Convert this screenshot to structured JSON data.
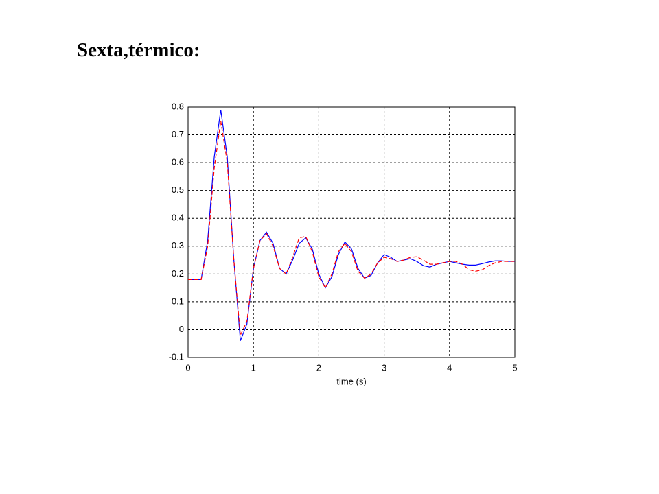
{
  "slide_title": "Sexta,térmico:",
  "chart_data": {
    "type": "line",
    "xlabel": "time (s)",
    "x": [
      0,
      0.1,
      0.2,
      0.3,
      0.4,
      0.5,
      0.6,
      0.7,
      0.8,
      0.9,
      1.0,
      1.1,
      1.2,
      1.3,
      1.4,
      1.5,
      1.6,
      1.7,
      1.8,
      1.9,
      2.0,
      2.1,
      2.2,
      2.3,
      2.4,
      2.5,
      2.6,
      2.7,
      2.8,
      2.9,
      3.0,
      3.1,
      3.2,
      3.3,
      3.4,
      3.5,
      3.6,
      3.7,
      3.8,
      3.9,
      4.0,
      4.1,
      4.2,
      4.3,
      4.4,
      4.5,
      4.6,
      4.7,
      4.8,
      4.9,
      5.0
    ],
    "series": [
      {
        "color": "#0000ff",
        "dash": false,
        "values": [
          0.18,
          0.18,
          0.18,
          0.32,
          0.62,
          0.79,
          0.62,
          0.25,
          -0.04,
          0.02,
          0.22,
          0.32,
          0.35,
          0.31,
          0.22,
          0.2,
          0.25,
          0.31,
          0.33,
          0.29,
          0.2,
          0.15,
          0.19,
          0.27,
          0.315,
          0.29,
          0.22,
          0.185,
          0.195,
          0.24,
          0.27,
          0.26,
          0.245,
          0.25,
          0.255,
          0.245,
          0.23,
          0.225,
          0.235,
          0.24,
          0.245,
          0.24,
          0.235,
          0.232,
          0.232,
          0.237,
          0.243,
          0.247,
          0.247,
          0.245,
          0.245
        ]
      },
      {
        "color": "#ff0000",
        "dash": true,
        "values": [
          0.18,
          0.18,
          0.18,
          0.3,
          0.58,
          0.75,
          0.6,
          0.25,
          -0.02,
          0.03,
          0.22,
          0.32,
          0.345,
          0.3,
          0.22,
          0.2,
          0.26,
          0.33,
          0.335,
          0.28,
          0.19,
          0.15,
          0.2,
          0.28,
          0.31,
          0.28,
          0.21,
          0.185,
          0.2,
          0.24,
          0.26,
          0.255,
          0.245,
          0.25,
          0.26,
          0.262,
          0.25,
          0.235,
          0.235,
          0.24,
          0.245,
          0.245,
          0.235,
          0.215,
          0.21,
          0.215,
          0.23,
          0.24,
          0.245,
          0.245,
          0.245
        ]
      }
    ],
    "xlim": [
      0,
      5
    ],
    "xticks": [
      0,
      1,
      2,
      3,
      4,
      5
    ],
    "ylim": [
      -0.1,
      0.8
    ],
    "yticks": [
      -0.1,
      0,
      0.1,
      0.2,
      0.3,
      0.4,
      0.5,
      0.6,
      0.7,
      0.8
    ],
    "grid": true
  }
}
